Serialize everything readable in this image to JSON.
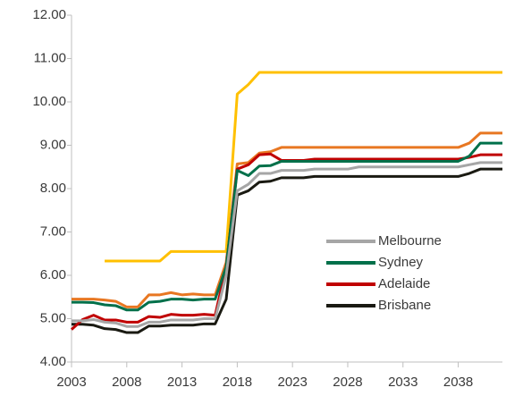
{
  "chart_data": {
    "type": "line",
    "x": [
      2003,
      2004,
      2005,
      2006,
      2007,
      2008,
      2009,
      2010,
      2011,
      2012,
      2013,
      2014,
      2015,
      2016,
      2017,
      2018,
      2019,
      2020,
      2021,
      2022,
      2023,
      2024,
      2025,
      2026,
      2027,
      2028,
      2029,
      2030,
      2031,
      2032,
      2033,
      2034,
      2035,
      2036,
      2037,
      2038,
      2039,
      2040,
      2041,
      2042
    ],
    "series": [
      {
        "name": "Melbourne",
        "color": "#a6a6a6",
        "values": [
          4.95,
          4.95,
          4.98,
          4.92,
          4.9,
          4.82,
          4.82,
          4.92,
          4.92,
          4.97,
          4.97,
          4.97,
          5.0,
          5.0,
          6.0,
          7.95,
          8.1,
          8.35,
          8.35,
          8.42,
          8.42,
          8.42,
          8.45,
          8.45,
          8.45,
          8.45,
          8.5,
          8.5,
          8.5,
          8.5,
          8.5,
          8.5,
          8.5,
          8.5,
          8.5,
          8.5,
          8.55,
          8.6,
          8.6,
          8.6
        ]
      },
      {
        "name": "Sydney",
        "color": "#00704a",
        "values": [
          5.38,
          5.38,
          5.37,
          5.32,
          5.3,
          5.2,
          5.2,
          5.38,
          5.4,
          5.45,
          5.45,
          5.43,
          5.45,
          5.45,
          6.2,
          8.42,
          8.3,
          8.52,
          8.53,
          8.63,
          8.63,
          8.63,
          8.63,
          8.63,
          8.63,
          8.63,
          8.63,
          8.63,
          8.63,
          8.63,
          8.63,
          8.63,
          8.63,
          8.63,
          8.63,
          8.63,
          8.75,
          9.05,
          9.05,
          9.05
        ]
      },
      {
        "name": "Adelaide",
        "color": "#c00000",
        "values": [
          4.75,
          4.98,
          5.08,
          4.97,
          4.97,
          4.92,
          4.92,
          5.05,
          5.03,
          5.1,
          5.08,
          5.08,
          5.1,
          5.08,
          6.2,
          8.45,
          8.55,
          8.78,
          8.8,
          8.65,
          8.65,
          8.65,
          8.68,
          8.68,
          8.68,
          8.68,
          8.68,
          8.68,
          8.68,
          8.68,
          8.68,
          8.68,
          8.68,
          8.68,
          8.68,
          8.68,
          8.72,
          8.78,
          8.78,
          8.78
        ]
      },
      {
        "name": "Brisbane",
        "color": "#1a1a12",
        "values": [
          4.87,
          4.87,
          4.85,
          4.77,
          4.75,
          4.68,
          4.68,
          4.83,
          4.83,
          4.85,
          4.85,
          4.85,
          4.88,
          4.88,
          5.45,
          7.85,
          7.95,
          8.15,
          8.17,
          8.25,
          8.25,
          8.25,
          8.28,
          8.28,
          8.28,
          8.28,
          8.28,
          8.28,
          8.28,
          8.28,
          8.28,
          8.28,
          8.28,
          8.28,
          8.28,
          8.28,
          8.35,
          8.45,
          8.45,
          8.45
        ]
      },
      {
        "color": "#ffc000",
        "values": [
          null,
          null,
          null,
          6.33,
          6.33,
          6.33,
          6.33,
          6.33,
          6.33,
          6.55,
          6.55,
          6.55,
          6.55,
          6.55,
          6.55,
          10.18,
          10.4,
          10.68,
          10.68,
          10.68,
          10.68,
          10.68,
          10.68,
          10.68,
          10.68,
          10.68,
          10.68,
          10.68,
          10.68,
          10.68,
          10.68,
          10.68,
          10.68,
          10.68,
          10.68,
          10.68,
          10.68,
          10.68,
          10.68,
          10.68
        ]
      },
      {
        "color": "#e87722",
        "values": [
          5.45,
          5.45,
          5.45,
          5.43,
          5.4,
          5.27,
          5.27,
          5.55,
          5.55,
          5.6,
          5.55,
          5.57,
          5.55,
          5.55,
          6.3,
          8.57,
          8.6,
          8.82,
          8.85,
          8.95,
          8.95,
          8.95,
          8.95,
          8.95,
          8.95,
          8.95,
          8.95,
          8.95,
          8.95,
          8.95,
          8.95,
          8.95,
          8.95,
          8.95,
          8.95,
          8.95,
          9.05,
          9.28,
          9.28,
          9.28
        ]
      }
    ],
    "xlim": [
      2003,
      2042
    ],
    "xticks": [
      2003,
      2008,
      2013,
      2018,
      2023,
      2028,
      2033,
      2038
    ],
    "ylim": [
      4,
      12
    ],
    "yticks": [
      {
        "value": 4,
        "label": "4.00"
      },
      {
        "value": 5,
        "label": "5.00"
      },
      {
        "value": 6,
        "label": "6.00"
      },
      {
        "value": 7,
        "label": "7.00"
      },
      {
        "value": 8,
        "label": "8.00"
      },
      {
        "value": 9,
        "label": "9.00"
      },
      {
        "value": 10,
        "label": "10.00"
      },
      {
        "value": 11,
        "label": "11.00"
      },
      {
        "value": 12,
        "label": "12.00"
      }
    ],
    "grid": false,
    "legend": "lower-right"
  }
}
